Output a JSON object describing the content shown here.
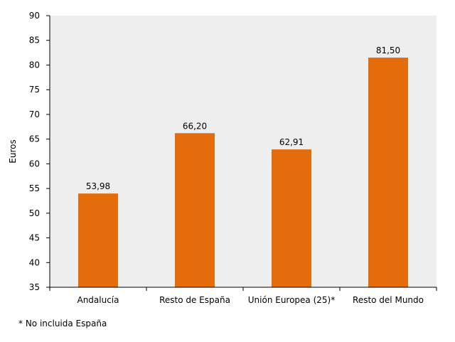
{
  "chart_data": {
    "type": "bar",
    "categories": [
      "Andalucía",
      "Resto de España",
      "Unión Europea (25)*",
      "Resto del Mundo"
    ],
    "values": [
      53.98,
      66.2,
      62.91,
      81.5
    ],
    "value_labels": [
      "53,98",
      "66,20",
      "62,91",
      "81,50"
    ],
    "ylabel": "Euros",
    "ylim": [
      35,
      90
    ],
    "yticks": [
      35,
      40,
      45,
      50,
      55,
      60,
      65,
      70,
      75,
      80,
      85,
      90
    ],
    "grid": false,
    "bar_color": "#E46C0A",
    "plot_background": "#EEEEEE"
  },
  "footnote": "* No incluida España"
}
